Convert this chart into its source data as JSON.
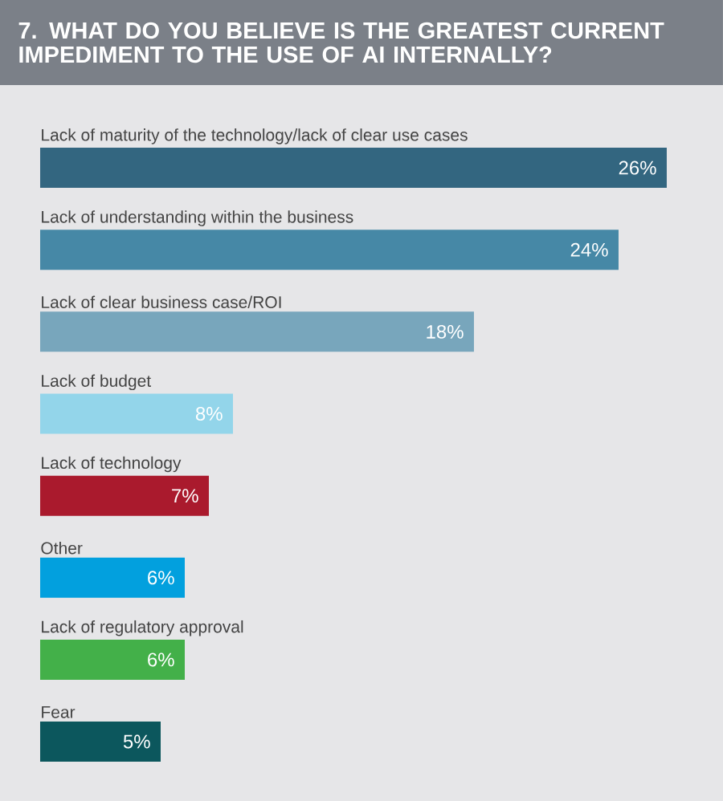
{
  "chart_data": {
    "type": "bar",
    "orientation": "horizontal",
    "title": "7. WHAT DO YOU BELIEVE IS THE GREATEST CURRENT IMPEDIMENT TO THE USE OF AI INTERNALLY?",
    "categories": [
      "Lack of maturity of the technology/lack of clear use cases",
      "Lack of understanding within the business",
      "Lack of clear business case/ROI",
      "Lack of budget",
      "Lack of technology",
      "Other",
      "Lack of regulatory approval",
      "Fear"
    ],
    "values": [
      26,
      24,
      18,
      8,
      7,
      6,
      6,
      5
    ],
    "colors": [
      "#336680",
      "#4688a6",
      "#78a6bc",
      "#93d5ea",
      "#aa1a2d",
      "#02a0de",
      "#43b049",
      "#0c575d"
    ],
    "value_labels": [
      "26%",
      "24%",
      "18%",
      "8%",
      "7%",
      "6%",
      "6%",
      "5%"
    ],
    "tick_labels": false
  }
}
